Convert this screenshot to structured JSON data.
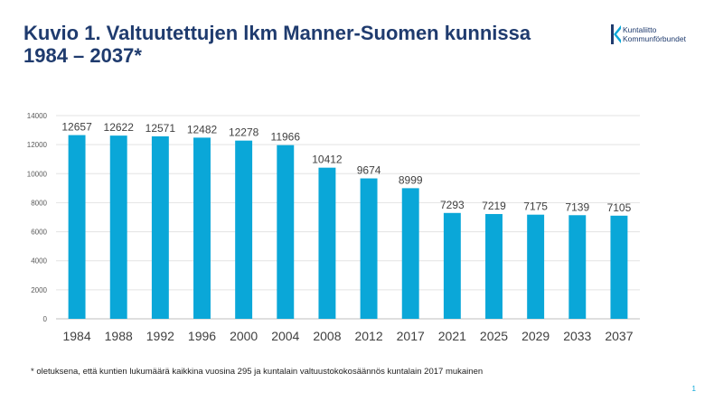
{
  "slide": {
    "title_line1": "Kuvio 1. Valtuutettujen lkm Manner-Suomen kunnissa",
    "title_line2": "1984 – 2037*",
    "footnote": "* oletuksena, että kuntien lukumäärä kaikkina vuosina 295 ja kuntalain valtuustokokosäännös kuntalain 2017 mukainen",
    "page_number": "1"
  },
  "logo": {
    "line1": "Kuntaliitto",
    "line2": "Kommunförbundet",
    "color": "#1f3b6e",
    "icon": "kuntaliitto-k-logo-icon"
  },
  "chart_data": {
    "type": "bar",
    "categories": [
      "1984",
      "1988",
      "1992",
      "1996",
      "2000",
      "2004",
      "2008",
      "2012",
      "2017",
      "2021",
      "2025",
      "2029",
      "2033",
      "2037"
    ],
    "values": [
      12657,
      12622,
      12571,
      12482,
      12278,
      11966,
      10412,
      9674,
      8999,
      7293,
      7219,
      7175,
      7139,
      7105
    ],
    "title": "",
    "xlabel": "",
    "ylabel": "",
    "ylim": [
      0,
      14000
    ],
    "yticks": [
      0,
      2000,
      4000,
      6000,
      8000,
      10000,
      12000,
      14000
    ],
    "data_labels": true,
    "grid": true,
    "legend": "none",
    "bar_color": "#0aa7d8"
  }
}
